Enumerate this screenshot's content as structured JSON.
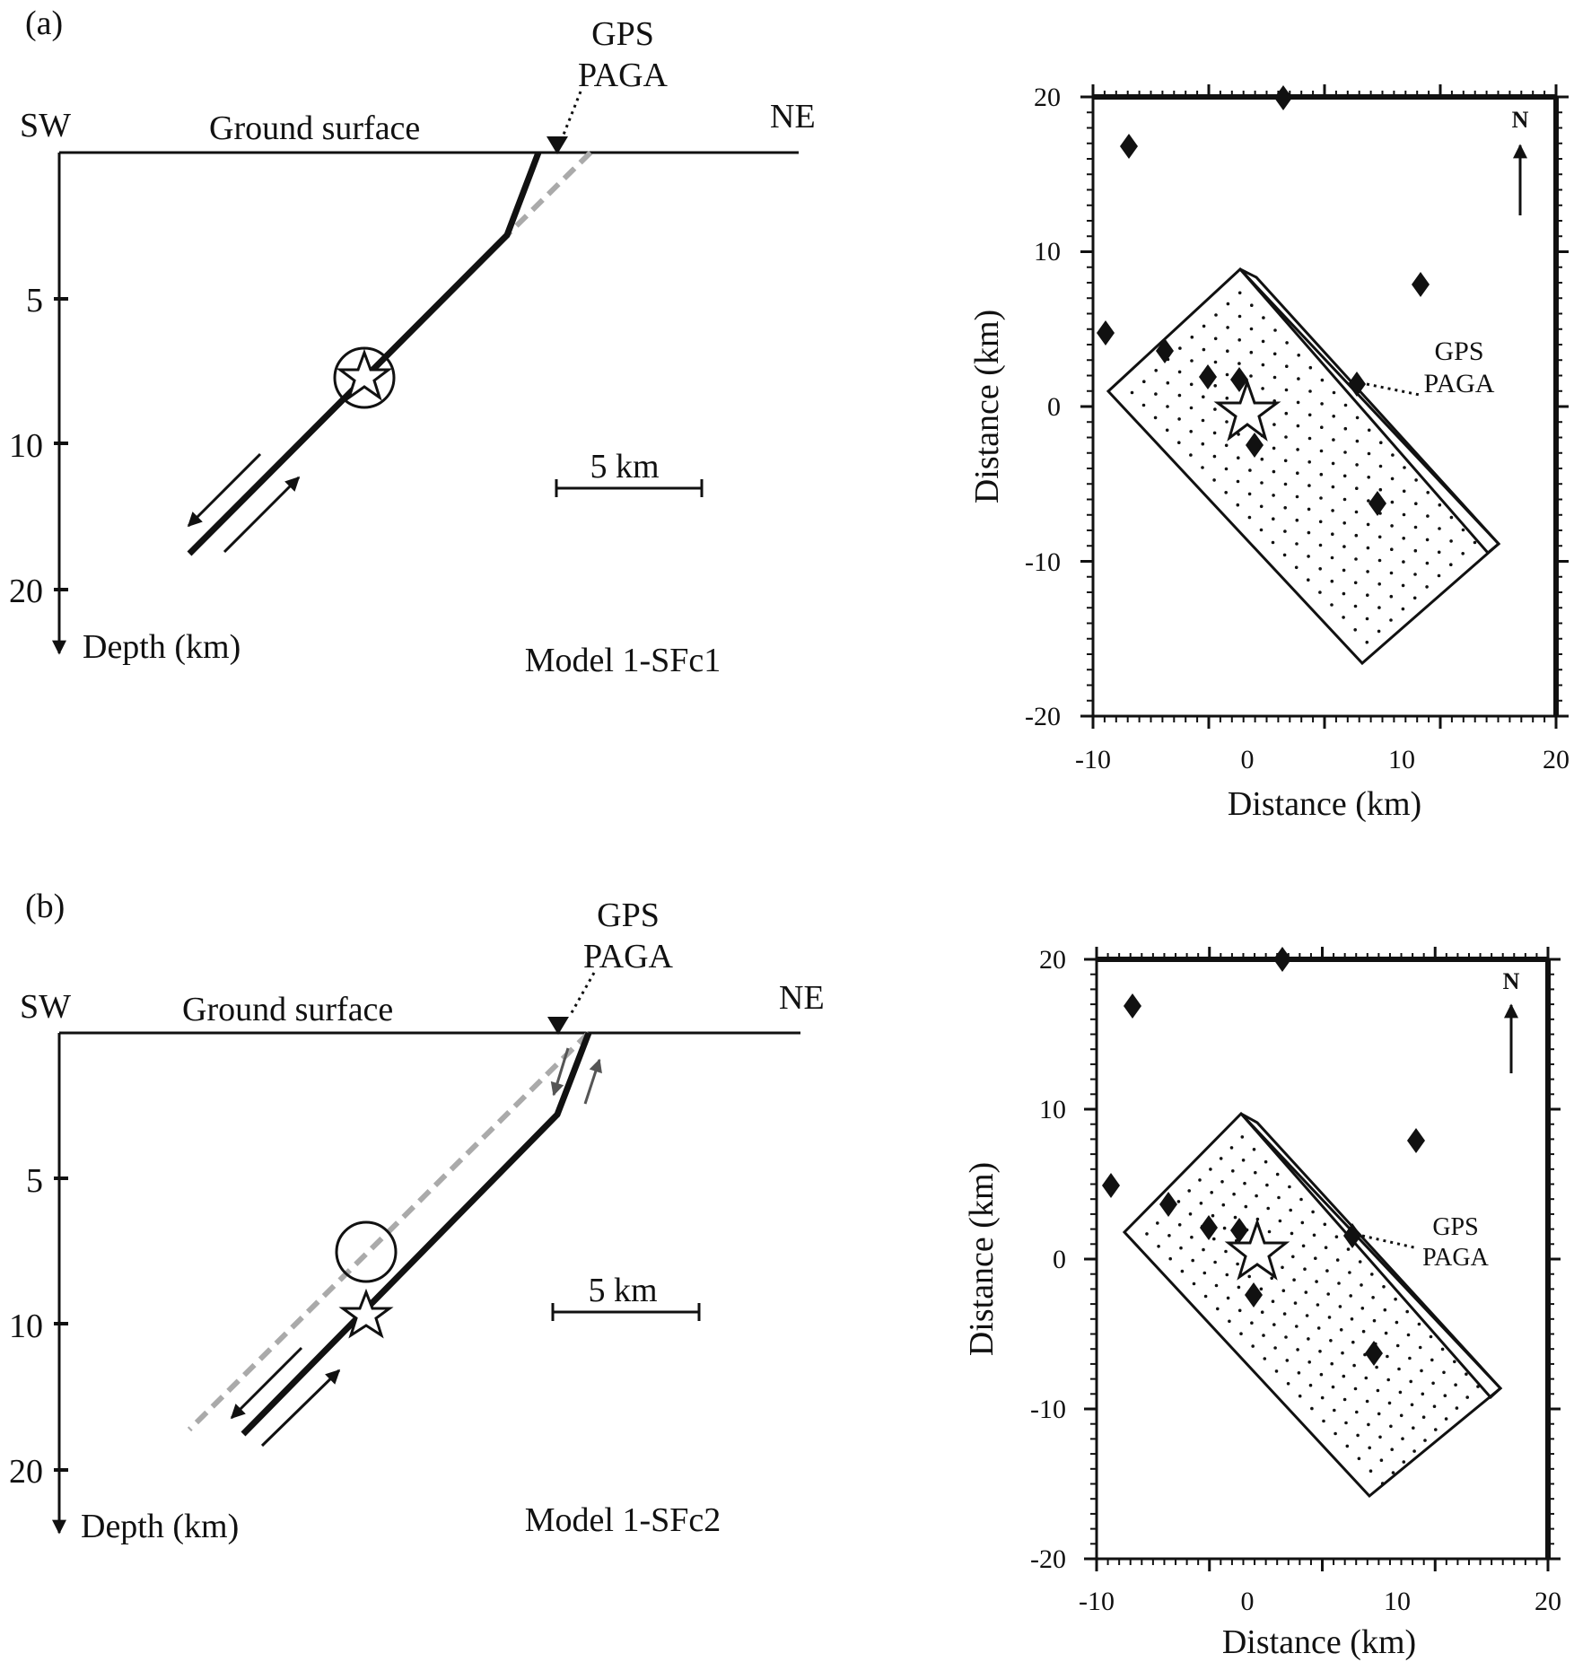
{
  "panels": [
    {
      "panel_label": "(a)",
      "cross_section": {
        "left_label": "SW",
        "right_label": "NE",
        "surface_label": "Ground surface",
        "gps_label_line1": "GPS",
        "gps_label_line2": "PAGA",
        "depth_axis_label": "Depth (km)",
        "depth_ticks": [
          "5",
          "10",
          "20"
        ],
        "scale_bar_label": "5 km",
        "model_label": "Model 1-SFc1"
      },
      "map": {
        "xlabel": "Distance (km)",
        "ylabel": "Distance (km)",
        "x_tick_labels": [
          "-10",
          "0",
          "10",
          "20"
        ],
        "y_tick_labels": [
          "20",
          "10",
          "0",
          "-10",
          "-20"
        ],
        "north_label": "N",
        "gps_label_line1": "GPS",
        "gps_label_line2": "PAGA"
      }
    },
    {
      "panel_label": "(b)",
      "cross_section": {
        "left_label": "SW",
        "right_label": "NE",
        "surface_label": "Ground surface",
        "gps_label_line1": "GPS",
        "gps_label_line2": "PAGA",
        "depth_axis_label": "Depth (km)",
        "depth_ticks": [
          "5",
          "10",
          "20"
        ],
        "scale_bar_label": "5 km",
        "model_label": "Model 1-SFc2"
      },
      "map": {
        "xlabel": "Distance (km)",
        "ylabel": "Distance (km)",
        "x_tick_labels": [
          "-10",
          "0",
          "10",
          "20"
        ],
        "y_tick_labels": [
          "20",
          "10",
          "0",
          "-10",
          "-20"
        ],
        "north_label": "N",
        "gps_label_line1": "GPS",
        "gps_label_line2": "PAGA"
      }
    }
  ],
  "colors": {
    "line": "#111111",
    "gray_dashed_fault": "#aaaaaa",
    "gray_arrow": "#555555"
  }
}
